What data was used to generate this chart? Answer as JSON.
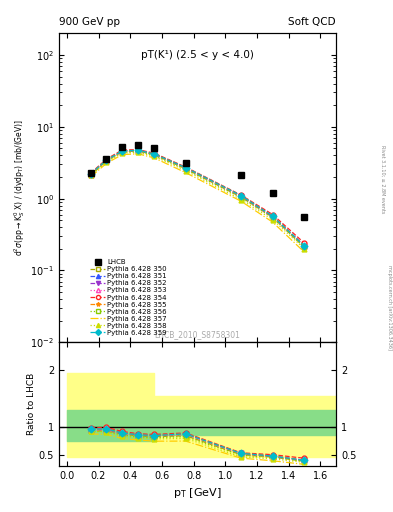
{
  "title_left": "900 GeV pp",
  "title_right": "Soft QCD",
  "annotation": "pT(K¹) (2.5 < y < 4.0)",
  "watermark": "LHCB_2010_S8758301",
  "right_label": "mcplots.cern.ch [arXiv:1306.3436]",
  "right_label2": "Rivet 3.1.10; ≥ 2.8M events",
  "ylabel_main": "d²σ(pp→K⁰_S X) / (dydp_T) [mb/(GeV)]",
  "ylabel_ratio": "Ratio to LHCB",
  "xlabel": "p_T [GeV]",
  "xlim": [
    -0.05,
    1.7
  ],
  "ylim_main": [
    0.01,
    200
  ],
  "ylim_ratio": [
    0.3,
    2.5
  ],
  "lhcb_x": [
    0.15,
    0.25,
    0.35,
    0.45,
    0.55,
    0.75,
    1.1,
    1.3,
    1.5
  ],
  "lhcb_y": [
    2.3,
    3.6,
    5.2,
    5.5,
    5.0,
    3.1,
    2.1,
    1.2,
    0.55
  ],
  "mc_x": [
    0.15,
    0.25,
    0.35,
    0.45,
    0.55,
    0.75,
    1.1,
    1.3,
    1.5
  ],
  "series": [
    {
      "label": "Pythia 6.428 350",
      "color": "#aaaa00",
      "linestyle": "--",
      "marker": "s",
      "markerfacecolor": "white",
      "y": [
        2.1,
        3.35,
        4.5,
        4.6,
        4.1,
        2.6,
        1.05,
        0.55,
        0.21
      ]
    },
    {
      "label": "Pythia 6.428 351",
      "color": "#3355ff",
      "linestyle": "--",
      "marker": "^",
      "markerfacecolor": "#3355ff",
      "y": [
        2.2,
        3.45,
        4.6,
        4.7,
        4.2,
        2.7,
        1.1,
        0.57,
        0.22
      ]
    },
    {
      "label": "Pythia 6.428 352",
      "color": "#9933cc",
      "linestyle": "--",
      "marker": "v",
      "markerfacecolor": "#9933cc",
      "y": [
        2.2,
        3.45,
        4.6,
        4.7,
        4.2,
        2.7,
        1.1,
        0.56,
        0.22
      ]
    },
    {
      "label": "Pythia 6.428 353",
      "color": "#ff44bb",
      "linestyle": ":",
      "marker": "^",
      "markerfacecolor": "white",
      "y": [
        2.15,
        3.35,
        4.5,
        4.65,
        4.15,
        2.65,
        1.07,
        0.55,
        0.22
      ]
    },
    {
      "label": "Pythia 6.428 354",
      "color": "#ff2222",
      "linestyle": "--",
      "marker": "o",
      "markerfacecolor": "white",
      "y": [
        2.25,
        3.55,
        4.75,
        4.8,
        4.3,
        2.75,
        1.12,
        0.6,
        0.24
      ]
    },
    {
      "label": "Pythia 6.428 355",
      "color": "#ff8800",
      "linestyle": "--",
      "marker": "*",
      "markerfacecolor": "#ff8800",
      "y": [
        2.2,
        3.45,
        4.6,
        4.7,
        4.2,
        2.7,
        1.1,
        0.57,
        0.22
      ]
    },
    {
      "label": "Pythia 6.428 356",
      "color": "#88cc00",
      "linestyle": ":",
      "marker": "s",
      "markerfacecolor": "white",
      "y": [
        2.1,
        3.3,
        4.4,
        4.5,
        4.0,
        2.55,
        1.03,
        0.54,
        0.21
      ]
    },
    {
      "label": "Pythia 6.428 357",
      "color": "#ffcc00",
      "linestyle": "-.",
      "marker": "None",
      "markerfacecolor": "#ffcc00",
      "y": [
        2.0,
        3.1,
        4.1,
        4.2,
        3.7,
        2.3,
        0.92,
        0.47,
        0.18
      ]
    },
    {
      "label": "Pythia 6.428 358",
      "color": "#ccdd00",
      "linestyle": ":",
      "marker": "^",
      "markerfacecolor": "#ccdd00",
      "y": [
        2.1,
        3.25,
        4.3,
        4.4,
        3.9,
        2.45,
        0.97,
        0.51,
        0.2
      ]
    },
    {
      "label": "Pythia 6.428 359",
      "color": "#00bbcc",
      "linestyle": "--",
      "marker": "D",
      "markerfacecolor": "#00bbcc",
      "y": [
        2.2,
        3.45,
        4.6,
        4.7,
        4.2,
        2.7,
        1.1,
        0.57,
        0.22
      ]
    }
  ],
  "band_edges": [
    0.0,
    0.3,
    0.55,
    1.7
  ],
  "band_yellow_low": [
    0.45,
    0.45,
    0.45,
    0.45
  ],
  "band_yellow_high": [
    1.95,
    1.95,
    1.55,
    1.55
  ],
  "band_green_low": [
    0.75,
    0.75,
    0.85,
    0.85
  ],
  "band_green_high": [
    1.3,
    1.3,
    1.3,
    1.3
  ]
}
